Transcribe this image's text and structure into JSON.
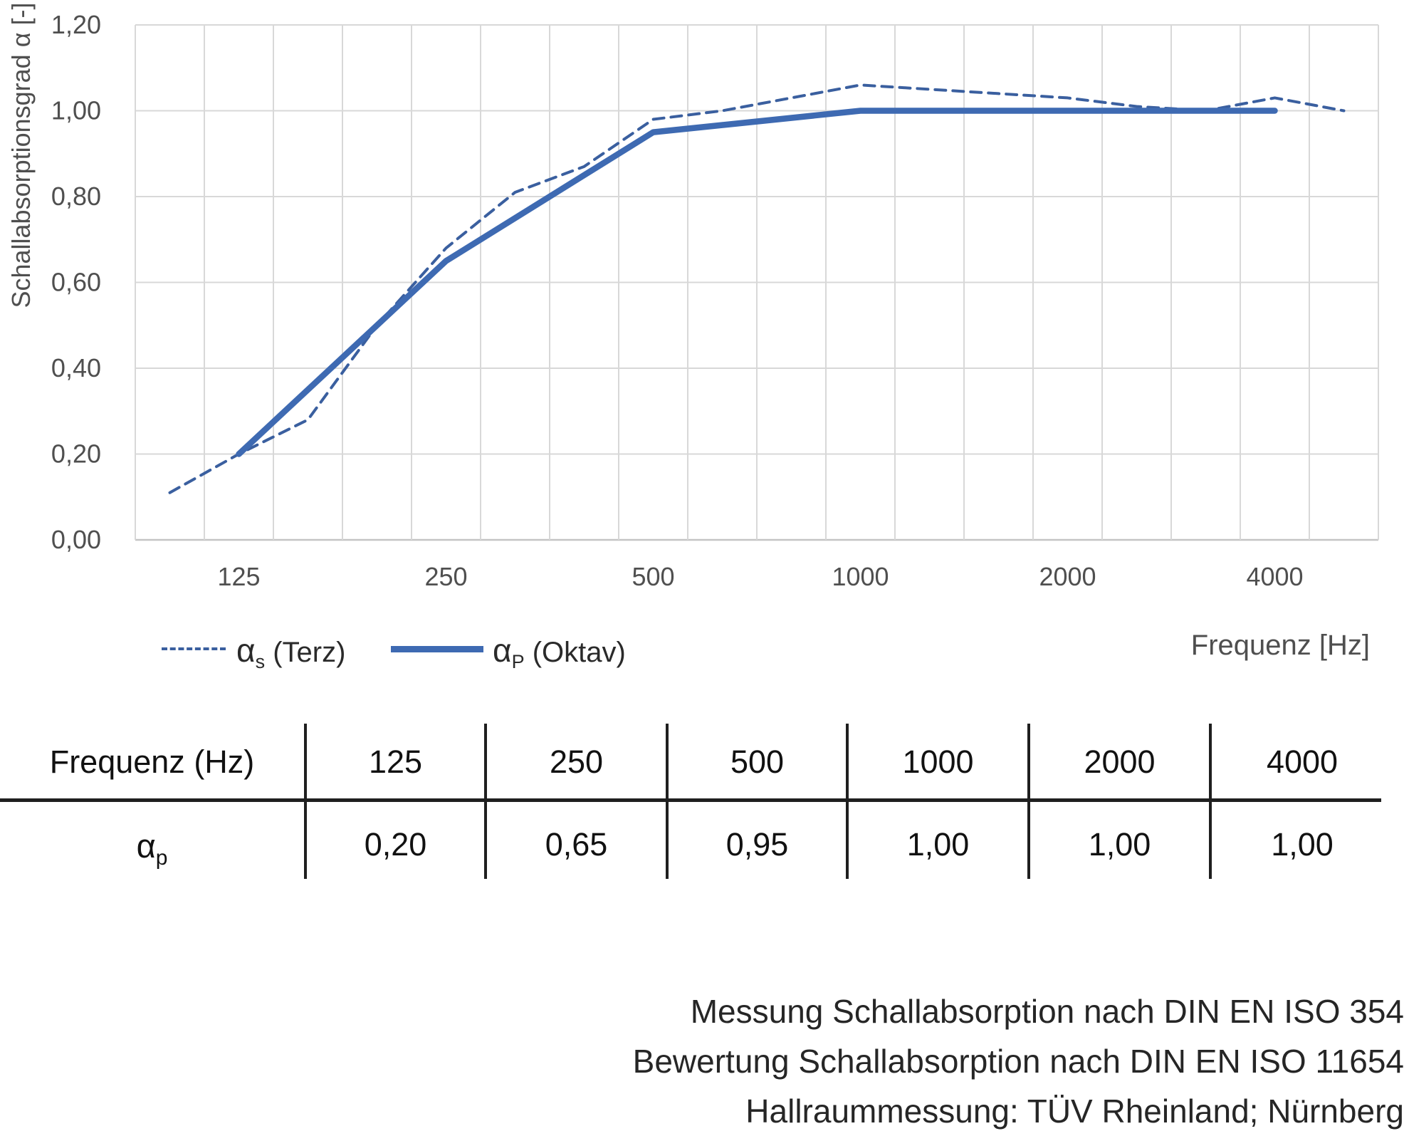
{
  "chart": {
    "ylabel": "Schallabsorptionsgrad α [-]",
    "xlabel": "Frequenz [Hz]",
    "legend": [
      {
        "symbol": "α",
        "sub": "s",
        "text": " (Terz)"
      },
      {
        "symbol": "α",
        "sub": "P",
        "text": " (Oktav)"
      }
    ]
  },
  "chart_data": {
    "type": "line",
    "title": "",
    "xlabel": "Frequenz [Hz]",
    "ylabel": "Schallabsorptionsgrad α [-]",
    "x_scale": "logarithmic third-octave categories",
    "grid": true,
    "legend_position": "bottom-left",
    "ylim": [
      0,
      1.2
    ],
    "x_categories": [
      100,
      125,
      160,
      200,
      250,
      315,
      400,
      500,
      630,
      800,
      1000,
      1250,
      1600,
      2000,
      2500,
      3150,
      4000,
      5000
    ],
    "x_tick_labels": [
      {
        "label": "125",
        "index": 1
      },
      {
        "label": "250",
        "index": 4
      },
      {
        "label": "500",
        "index": 7
      },
      {
        "label": "1000",
        "index": 10
      },
      {
        "label": "2000",
        "index": 13
      },
      {
        "label": "4000",
        "index": 16
      }
    ],
    "y_ticks": [
      {
        "label": "0,00",
        "value": 0.0
      },
      {
        "label": "0,20",
        "value": 0.2
      },
      {
        "label": "0,40",
        "value": 0.4
      },
      {
        "label": "0,60",
        "value": 0.6
      },
      {
        "label": "0,80",
        "value": 0.8
      },
      {
        "label": "1,00",
        "value": 1.0
      },
      {
        "label": "1,20",
        "value": 1.2
      }
    ],
    "series": [
      {
        "name": "αs (Terz)",
        "style": "dashed",
        "color": "#3a5f9f",
        "width": 4,
        "values": [
          0.11,
          0.2,
          0.28,
          0.5,
          0.68,
          0.81,
          0.87,
          0.98,
          1.0,
          1.03,
          1.06,
          1.05,
          1.04,
          1.03,
          1.01,
          1.0,
          1.03,
          1.0
        ]
      },
      {
        "name": "αP (Oktav)",
        "style": "solid",
        "color": "#3e6ab2",
        "width": 8.5,
        "indices": [
          1,
          4,
          7,
          10,
          13,
          16
        ],
        "values": [
          0.2,
          0.65,
          0.95,
          1.0,
          1.0,
          1.0
        ]
      }
    ],
    "colors": {
      "gridline": "#d8d8d8",
      "axis_line": "#c4c4c4",
      "tick_text": "#4f4f4f"
    }
  },
  "table": {
    "header_label": "Frequenz (Hz)",
    "row_symbol": "α",
    "row_sub": "p",
    "columns": [
      "125",
      "250",
      "500",
      "1000",
      "2000",
      "4000"
    ],
    "values": [
      "0,20",
      "0,65",
      "0,95",
      "1,00",
      "1,00",
      "1,00"
    ]
  },
  "footer": {
    "line1": "Messung Schallabsorption nach DIN EN ISO 354",
    "line2": "Bewertung Schallabsorption nach DIN EN ISO 11654",
    "line3": "Hallraummessung: TÜV Rheinland; Nürnberg"
  }
}
